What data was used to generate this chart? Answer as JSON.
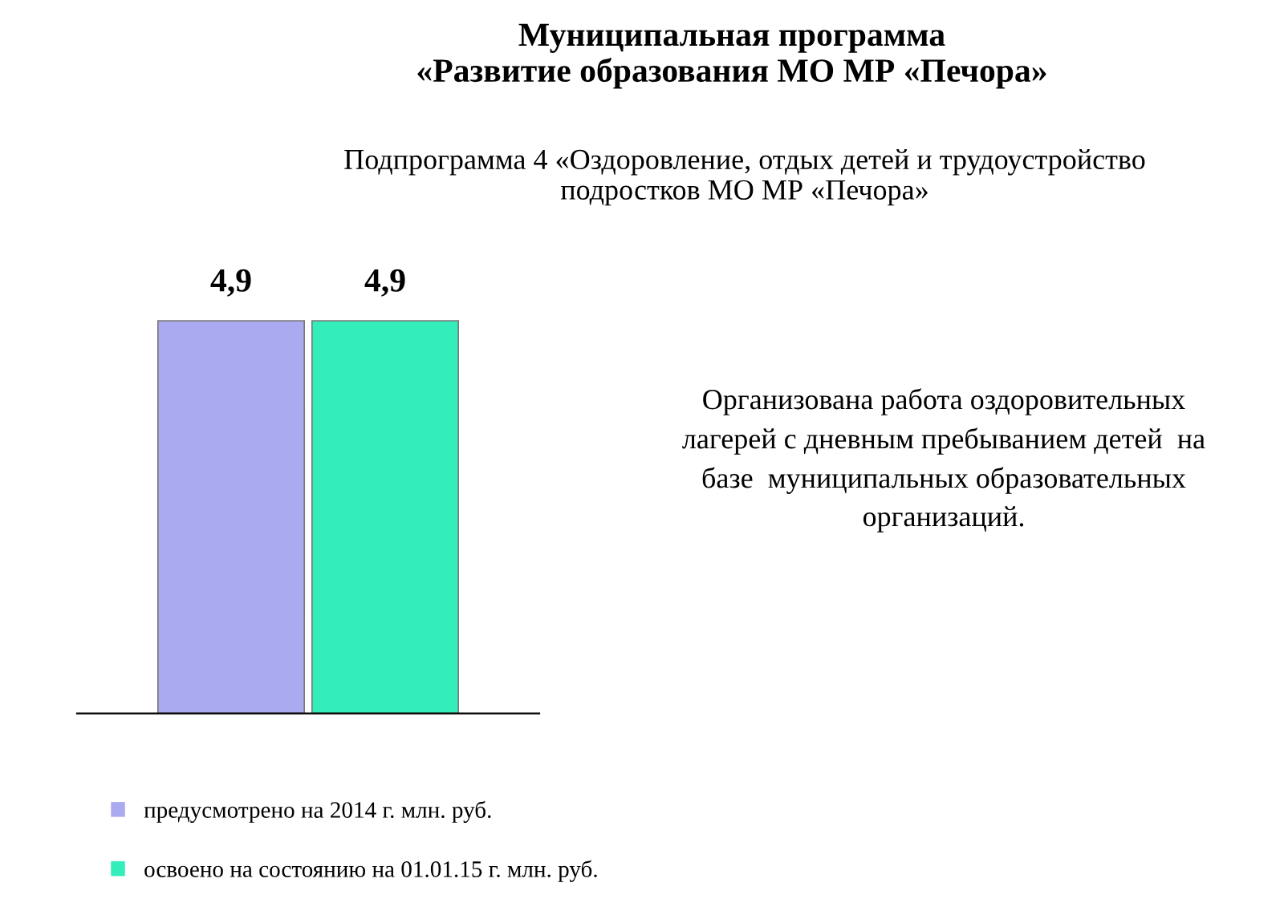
{
  "chart_data": {
    "type": "bar",
    "title": "Муниципальная программа\n«Развитие образования МО МР «Печора»",
    "subtitle": "Подпрограмма 4 «Оздоровление, отдых детей и трудоустройство\nподростков МО МР «Печора»",
    "categories": [
      null
    ],
    "series": [
      {
        "name": "предусмотрено на 2014 г. млн. руб.",
        "color": "#aaaaf0",
        "values": [
          4.9
        ],
        "value_labels": [
          "4,9"
        ]
      },
      {
        "name": "освоено на состоянию на 01.01.15 г. млн. руб.",
        "color": "#33eebb",
        "values": [
          4.9
        ],
        "value_labels": [
          "4,9"
        ]
      }
    ],
    "annotations": [
      "Организована работа оздоровительных\nлагерей с дневным пребыванием детей  на\nбазе  муниципальных образовательных\nорганизаций."
    ],
    "legend": "bottom",
    "grid": false,
    "tick_labels": false
  }
}
